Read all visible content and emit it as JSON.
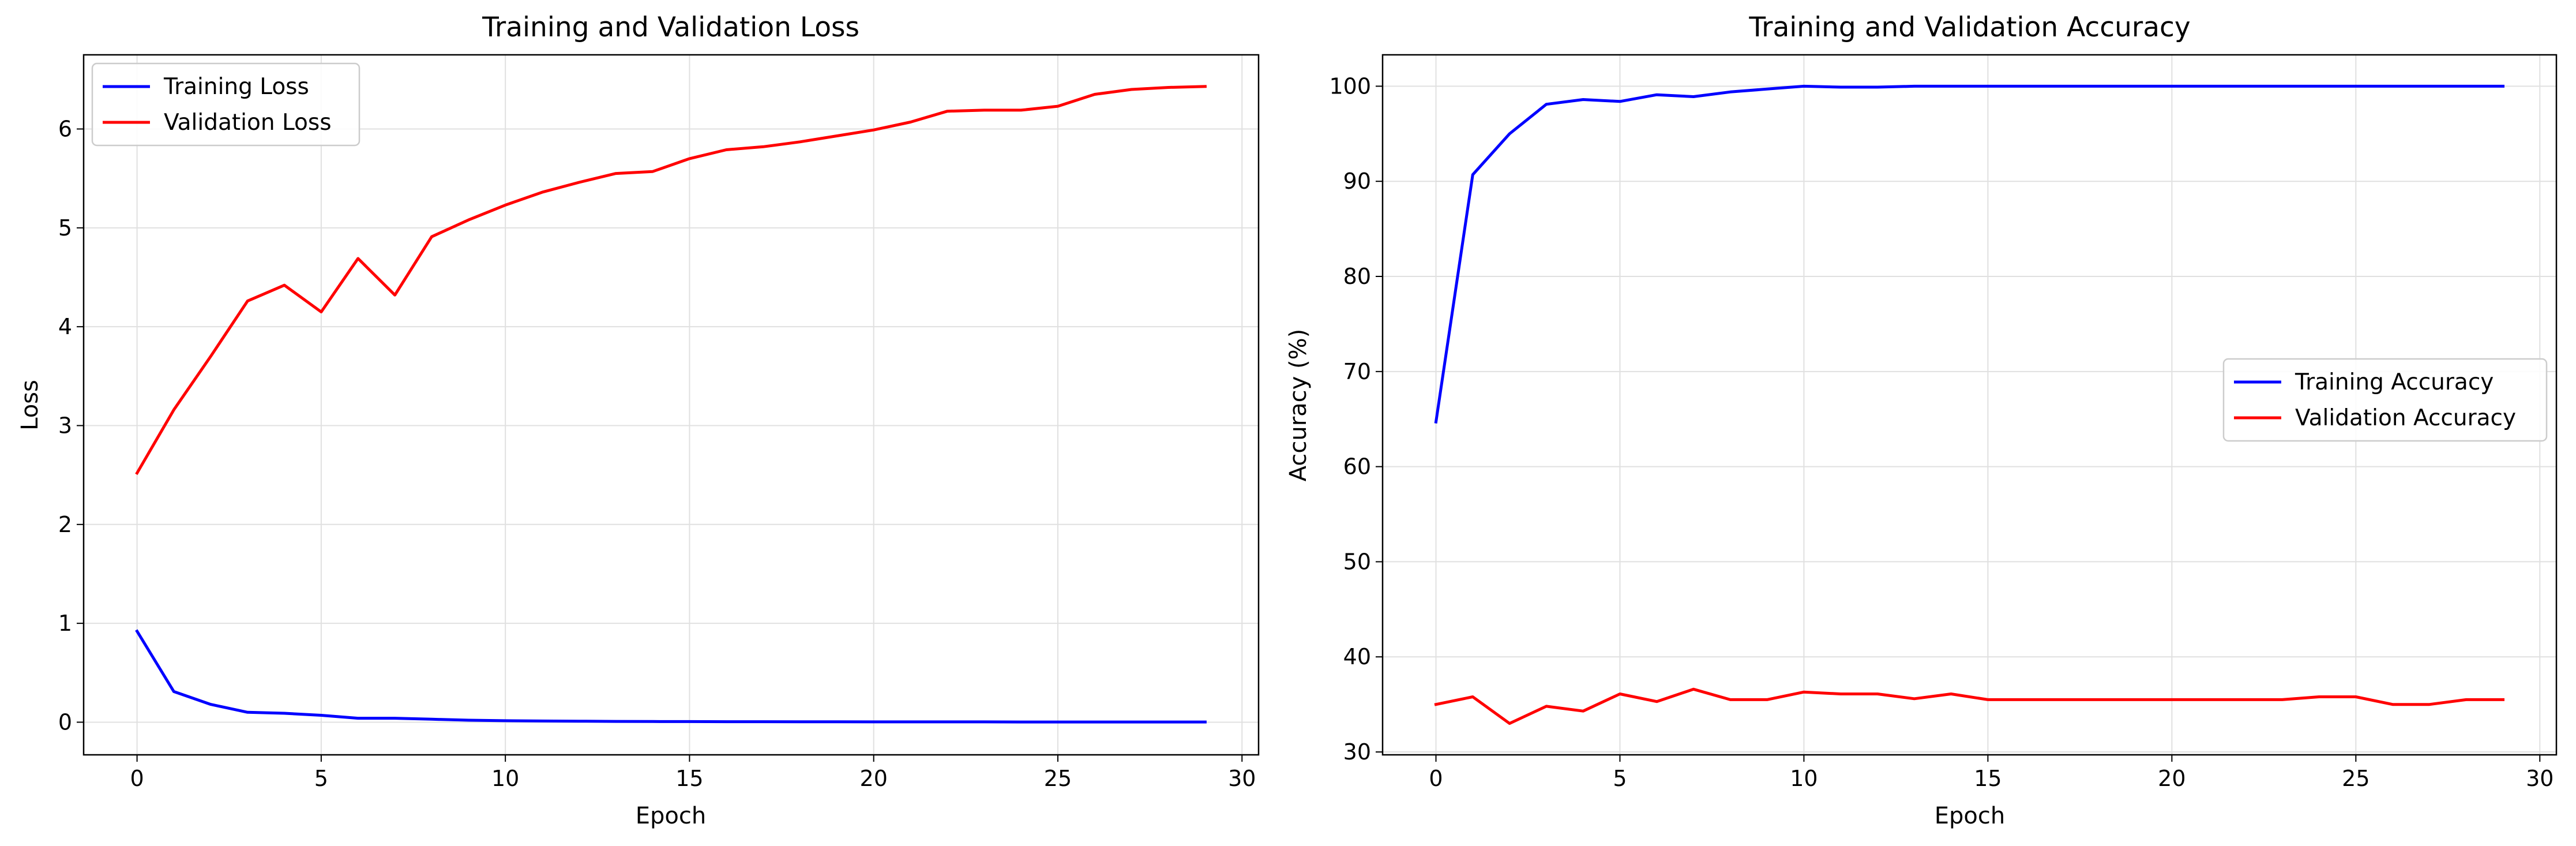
{
  "chart_data": [
    {
      "type": "line",
      "title": "Training and Validation Loss",
      "xlabel": "Epoch",
      "ylabel": "Loss",
      "xlim": [
        -1.45,
        30.45
      ],
      "ylim": [
        -0.33,
        6.75
      ],
      "xticks": [
        0,
        5,
        10,
        15,
        20,
        25,
        30
      ],
      "yticks": [
        0,
        1,
        2,
        3,
        4,
        5,
        6
      ],
      "grid": true,
      "legend": "upper-left",
      "x": [
        0,
        1,
        2,
        3,
        4,
        5,
        6,
        7,
        8,
        9,
        10,
        11,
        12,
        13,
        14,
        15,
        16,
        17,
        18,
        19,
        20,
        21,
        22,
        23,
        24,
        25,
        26,
        27,
        28,
        29
      ],
      "series": [
        {
          "name": "Training Loss",
          "color": "#0000ff",
          "values": [
            0.92,
            0.31,
            0.18,
            0.1,
            0.09,
            0.07,
            0.04,
            0.04,
            0.03,
            0.02,
            0.015,
            0.012,
            0.01,
            0.008,
            0.007,
            0.006,
            0.005,
            0.005,
            0.004,
            0.004,
            0.003,
            0.003,
            0.003,
            0.003,
            0.002,
            0.002,
            0.002,
            0.002,
            0.002,
            0.002
          ]
        },
        {
          "name": "Validation Loss",
          "color": "#ff0000",
          "values": [
            2.52,
            3.16,
            3.7,
            4.26,
            4.42,
            4.15,
            4.69,
            4.32,
            4.91,
            5.08,
            5.23,
            5.36,
            5.46,
            5.55,
            5.57,
            5.7,
            5.79,
            5.82,
            5.87,
            5.93,
            5.99,
            6.07,
            6.18,
            6.19,
            6.19,
            6.23,
            6.35,
            6.4,
            6.42,
            6.43
          ]
        }
      ]
    },
    {
      "type": "line",
      "title": "Training and Validation Accuracy",
      "xlabel": "Epoch",
      "ylabel": "Accuracy (%)",
      "xlim": [
        -1.45,
        30.45
      ],
      "ylim": [
        29.7,
        103.3
      ],
      "xticks": [
        0,
        5,
        10,
        15,
        20,
        25,
        30
      ],
      "yticks": [
        30,
        40,
        50,
        60,
        70,
        80,
        90,
        100
      ],
      "grid": true,
      "legend": "center-right",
      "x": [
        0,
        1,
        2,
        3,
        4,
        5,
        6,
        7,
        8,
        9,
        10,
        11,
        12,
        13,
        14,
        15,
        16,
        17,
        18,
        19,
        20,
        21,
        22,
        23,
        24,
        25,
        26,
        27,
        28,
        29
      ],
      "series": [
        {
          "name": "Training Accuracy",
          "color": "#0000ff",
          "values": [
            64.7,
            90.7,
            95.0,
            98.1,
            98.6,
            98.4,
            99.1,
            98.9,
            99.4,
            99.7,
            100,
            99.9,
            99.9,
            100,
            100,
            100,
            100,
            100,
            100,
            100,
            100,
            100,
            100,
            100,
            100,
            100,
            100,
            100,
            100,
            100
          ]
        },
        {
          "name": "Validation Accuracy",
          "color": "#ff0000",
          "values": [
            35.0,
            35.8,
            33.0,
            34.8,
            34.3,
            36.1,
            35.3,
            36.6,
            35.5,
            35.5,
            36.3,
            36.1,
            36.1,
            35.6,
            36.1,
            35.5,
            35.5,
            35.5,
            35.5,
            35.5,
            35.5,
            35.5,
            35.5,
            35.5,
            35.8,
            35.8,
            35.0,
            35.0,
            35.5,
            35.5
          ]
        }
      ]
    }
  ]
}
